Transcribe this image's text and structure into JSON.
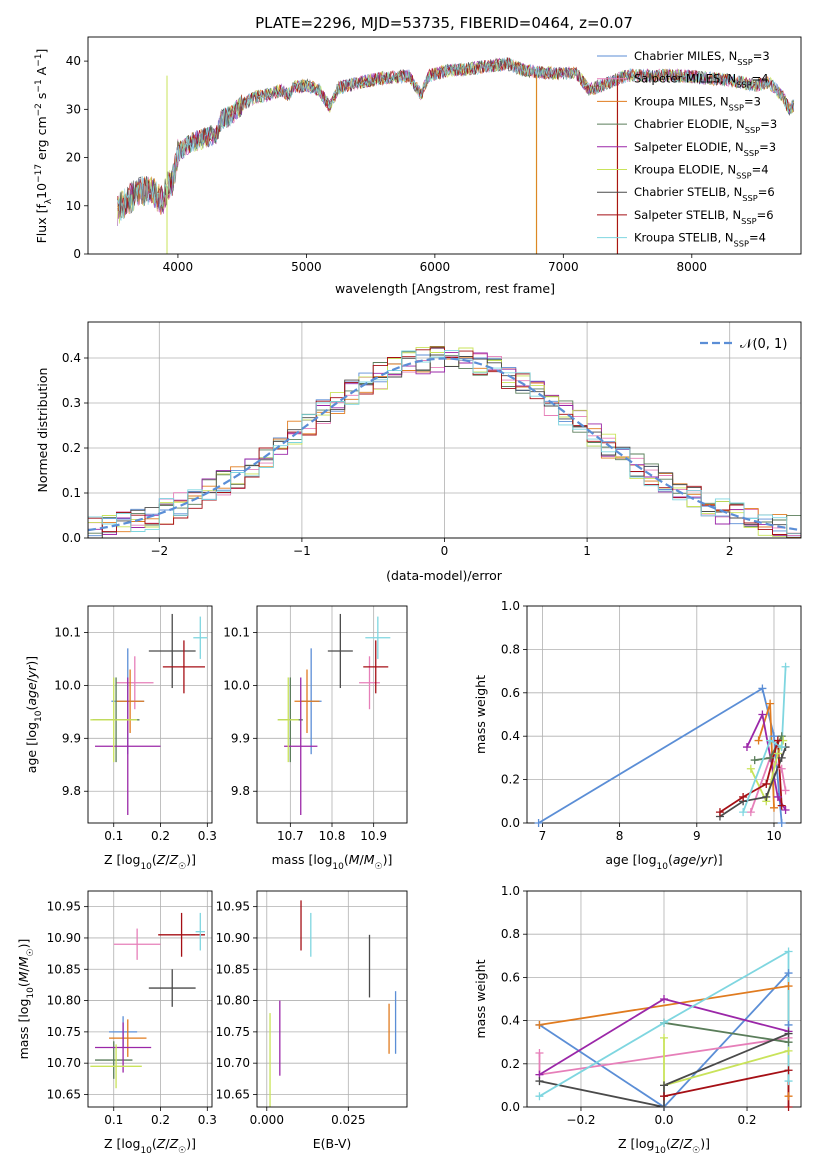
{
  "title": "PLATE=2296, MJD=53735, FIBERID=0464, z=0.07",
  "colors": {
    "Chabrier MILES": "#5b8ed6",
    "Salpeter MILES": "#e67fb9",
    "Kroupa MILES": "#e07b1f",
    "Chabrier ELODIE": "#5a7d5a",
    "Salpeter ELODIE": "#9b27a8",
    "Kroupa ELODIE": "#c9e35a",
    "Chabrier STELIB": "#4a4a4a",
    "Salpeter STELIB": "#a50f15",
    "Kroupa STELIB": "#7fd6e0",
    "gaussian": "#5b8ed6"
  },
  "chart_data": [
    {
      "type": "line",
      "id": "spectrum",
      "xlabel": "wavelength [Angstrom, rest frame]",
      "ylabel": "Flux [f_λ 10^-17 erg cm^-2 s^-1 A^-1]",
      "xlim": [
        3300,
        8850
      ],
      "ylim": [
        0,
        45
      ],
      "xticks": [
        "4000",
        "5000",
        "6000",
        "7000",
        "8000"
      ],
      "yticks": [
        "0",
        "10",
        "20",
        "30",
        "40"
      ],
      "grid": false,
      "legend_position": "upper-right",
      "spectrum_anchors": [
        [
          3530,
          9
        ],
        [
          3600,
          11
        ],
        [
          3700,
          13
        ],
        [
          3800,
          13
        ],
        [
          3880,
          11
        ],
        [
          3920,
          14
        ],
        [
          3960,
          15
        ],
        [
          4000,
          21
        ],
        [
          4100,
          23
        ],
        [
          4200,
          24
        ],
        [
          4300,
          25
        ],
        [
          4340,
          28
        ],
        [
          4400,
          28.5
        ],
        [
          4500,
          31
        ],
        [
          4600,
          32.5
        ],
        [
          4700,
          33
        ],
        [
          4800,
          34
        ],
        [
          4860,
          33
        ],
        [
          4900,
          34.5
        ],
        [
          5000,
          35
        ],
        [
          5100,
          34
        ],
        [
          5180,
          30.5
        ],
        [
          5250,
          34.5
        ],
        [
          5400,
          35.5
        ],
        [
          5600,
          36.5
        ],
        [
          5800,
          37
        ],
        [
          5895,
          33
        ],
        [
          5950,
          37
        ],
        [
          6100,
          38
        ],
        [
          6300,
          38.5
        ],
        [
          6563,
          39.5
        ],
        [
          6700,
          38
        ],
        [
          6900,
          37.5
        ],
        [
          7100,
          37.5
        ],
        [
          7200,
          34
        ],
        [
          7300,
          35
        ],
        [
          7500,
          37
        ],
        [
          7700,
          37
        ],
        [
          7900,
          37
        ],
        [
          8100,
          36.5
        ],
        [
          8300,
          36
        ],
        [
          8500,
          35
        ],
        [
          8600,
          35.5
        ],
        [
          8700,
          33
        ],
        [
          8760,
          30
        ],
        [
          8800,
          31
        ]
      ],
      "series": [
        {
          "name": "Chabrier MILES",
          "legend": "Chabrier MILES, N_SSP=3"
        },
        {
          "name": "Salpeter MILES",
          "legend": "Salpeter MILES, N_SSP=4"
        },
        {
          "name": "Kroupa MILES",
          "legend": "Kroupa MILES, N_SSP=3"
        },
        {
          "name": "Chabrier ELODIE",
          "legend": "Chabrier ELODIE, N_SSP=3"
        },
        {
          "name": "Salpeter ELODIE",
          "legend": "Salpeter ELODIE, N_SSP=3"
        },
        {
          "name": "Kroupa ELODIE",
          "legend": "Kroupa ELODIE, N_SSP=4"
        },
        {
          "name": "Chabrier STELIB",
          "legend": "Chabrier STELIB, N_SSP=6"
        },
        {
          "name": "Salpeter STELIB",
          "legend": "Salpeter STELIB, N_SSP=6"
        },
        {
          "name": "Kroupa STELIB",
          "legend": "Kroupa STELIB, N_SSP=4"
        }
      ]
    },
    {
      "type": "histogram",
      "id": "residuals",
      "xlabel": "(data-model)/error",
      "ylabel": "Normed distribution",
      "xlim": [
        -2.5,
        2.5
      ],
      "ylim": [
        0,
        0.48
      ],
      "xticks": [
        -2,
        -1,
        0,
        1,
        2
      ],
      "yticks": [
        0.0,
        0.1,
        0.2,
        0.3,
        0.4
      ],
      "bin_width": 0.1,
      "grid": true,
      "legend_position": "upper-right",
      "gaussian_legend": "𝒩(0, 1)"
    },
    {
      "type": "scatter",
      "id": "age-vs-Z",
      "xlabel": "Z [log10(Z/Z☉)]",
      "ylabel": "age [log10(age/yr)]",
      "xlim": [
        0.045,
        0.31
      ],
      "ylim": [
        9.74,
        10.15
      ],
      "xticks": [
        0.1,
        0.2,
        0.3
      ],
      "yticks": [
        9.8,
        9.9,
        10.0,
        10.1
      ],
      "grid": true,
      "points": [
        {
          "series": "Chabrier MILES",
          "x": 0.13,
          "y": 9.97,
          "xerr": 0.035,
          "yerr": 0.1
        },
        {
          "series": "Salpeter MILES",
          "x": 0.145,
          "y": 10.005,
          "xerr": 0.04,
          "yerr": 0.05
        },
        {
          "series": "Kroupa MILES",
          "x": 0.135,
          "y": 9.97,
          "xerr": 0.03,
          "yerr": 0.06
        },
        {
          "series": "Chabrier ELODIE",
          "x": 0.105,
          "y": 9.935,
          "xerr": 0.05,
          "yerr": 0.08
        },
        {
          "series": "Salpeter ELODIE",
          "x": 0.13,
          "y": 9.885,
          "xerr": 0.07,
          "yerr": 0.13
        },
        {
          "series": "Kroupa ELODIE",
          "x": 0.1,
          "y": 9.935,
          "xerr": 0.05,
          "yerr": 0.08
        },
        {
          "series": "Chabrier STELIB",
          "x": 0.225,
          "y": 10.065,
          "xerr": 0.05,
          "yerr": 0.07
        },
        {
          "series": "Salpeter STELIB",
          "x": 0.25,
          "y": 10.035,
          "xerr": 0.045,
          "yerr": 0.05
        },
        {
          "series": "Kroupa STELIB",
          "x": 0.285,
          "y": 10.09,
          "xerr": 0.015,
          "yerr": 0.04
        }
      ]
    },
    {
      "type": "scatter",
      "id": "age-vs-mass",
      "xlabel": "mass [log10(M/M☉)]",
      "ylabel": "",
      "xlim": [
        10.62,
        10.98
      ],
      "ylim": [
        9.74,
        10.15
      ],
      "xticks": [
        10.7,
        10.8,
        10.9
      ],
      "yticks": [
        9.8,
        9.9,
        10.0,
        10.1
      ],
      "grid": true,
      "points": [
        {
          "series": "Chabrier MILES",
          "x": 10.75,
          "y": 9.97,
          "xerr": 0.025,
          "yerr": 0.1
        },
        {
          "series": "Salpeter MILES",
          "x": 10.89,
          "y": 10.005,
          "xerr": 0.025,
          "yerr": 0.05
        },
        {
          "series": "Kroupa MILES",
          "x": 10.74,
          "y": 9.97,
          "xerr": 0.03,
          "yerr": 0.06
        },
        {
          "series": "Chabrier ELODIE",
          "x": 10.7,
          "y": 9.935,
          "xerr": 0.03,
          "yerr": 0.08
        },
        {
          "series": "Salpeter ELODIE",
          "x": 10.725,
          "y": 9.885,
          "xerr": 0.04,
          "yerr": 0.13
        },
        {
          "series": "Kroupa ELODIE",
          "x": 10.695,
          "y": 9.935,
          "xerr": 0.025,
          "yerr": 0.08
        },
        {
          "series": "Chabrier STELIB",
          "x": 10.82,
          "y": 10.065,
          "xerr": 0.03,
          "yerr": 0.07
        },
        {
          "series": "Salpeter STELIB",
          "x": 10.905,
          "y": 10.035,
          "xerr": 0.03,
          "yerr": 0.05
        },
        {
          "series": "Kroupa STELIB",
          "x": 10.91,
          "y": 10.09,
          "xerr": 0.03,
          "yerr": 0.04
        }
      ]
    },
    {
      "type": "line",
      "id": "mass-weight-vs-age",
      "xlabel": "age [log10(age/yr)]",
      "ylabel": "mass weight",
      "xlim": [
        6.8,
        10.35
      ],
      "ylim": [
        0,
        1
      ],
      "xticks": [
        7,
        8,
        9,
        10
      ],
      "yticks": [
        0.0,
        0.2,
        0.4,
        0.6,
        0.8,
        1.0
      ],
      "grid": true,
      "series": [
        {
          "name": "Chabrier MILES",
          "points": [
            [
              6.95,
              0.0
            ],
            [
              9.85,
              0.62
            ],
            [
              10.0,
              0.4
            ],
            [
              10.1,
              0.0
            ]
          ]
        },
        {
          "name": "Salpeter MILES",
          "points": [
            [
              9.7,
              0.05
            ],
            [
              9.95,
              0.3
            ],
            [
              10.1,
              0.25
            ],
            [
              10.15,
              0.15
            ]
          ]
        },
        {
          "name": "Kroupa MILES",
          "points": [
            [
              9.8,
              0.38
            ],
            [
              9.95,
              0.55
            ],
            [
              10.0,
              0.07
            ]
          ]
        },
        {
          "name": "Chabrier ELODIE",
          "points": [
            [
              9.75,
              0.29
            ],
            [
              9.95,
              0.3
            ],
            [
              10.1,
              0.4
            ]
          ]
        },
        {
          "name": "Salpeter ELODIE",
          "points": [
            [
              9.65,
              0.35
            ],
            [
              9.85,
              0.5
            ],
            [
              10.05,
              0.12
            ],
            [
              10.15,
              0.06
            ]
          ]
        },
        {
          "name": "Kroupa ELODIE",
          "points": [
            [
              9.7,
              0.25
            ],
            [
              9.9,
              0.1
            ],
            [
              10.05,
              0.32
            ],
            [
              10.12,
              0.38
            ]
          ]
        },
        {
          "name": "Chabrier STELIB",
          "points": [
            [
              9.3,
              0.03
            ],
            [
              9.6,
              0.1
            ],
            [
              9.9,
              0.12
            ],
            [
              10.1,
              0.3
            ],
            [
              10.15,
              0.35
            ]
          ]
        },
        {
          "name": "Salpeter STELIB",
          "points": [
            [
              9.3,
              0.05
            ],
            [
              9.6,
              0.12
            ],
            [
              9.9,
              0.18
            ],
            [
              10.05,
              0.38
            ],
            [
              10.1,
              0.08
            ]
          ]
        },
        {
          "name": "Kroupa STELIB",
          "points": [
            [
              9.6,
              0.05
            ],
            [
              9.95,
              0.38
            ],
            [
              10.1,
              0.35
            ],
            [
              10.15,
              0.72
            ]
          ]
        }
      ]
    },
    {
      "type": "scatter",
      "id": "mass-vs-Z",
      "xlabel": "Z [log10(Z/Z☉)]",
      "ylabel": "mass [log10(M/M☉)]",
      "xlim": [
        0.045,
        0.31
      ],
      "ylim": [
        10.63,
        10.975
      ],
      "xticks": [
        0.1,
        0.2,
        0.3
      ],
      "yticks": [
        10.65,
        10.7,
        10.75,
        10.8,
        10.85,
        10.9,
        10.95
      ],
      "grid": true,
      "points": [
        {
          "series": "Chabrier MILES",
          "x": 0.12,
          "y": 10.75,
          "xerr": 0.03,
          "yerr": 0.025
        },
        {
          "series": "Salpeter MILES",
          "x": 0.15,
          "y": 10.89,
          "xerr": 0.05,
          "yerr": 0.025
        },
        {
          "series": "Kroupa MILES",
          "x": 0.13,
          "y": 10.74,
          "xerr": 0.04,
          "yerr": 0.03
        },
        {
          "series": "Chabrier ELODIE",
          "x": 0.1,
          "y": 10.705,
          "xerr": 0.04,
          "yerr": 0.03
        },
        {
          "series": "Salpeter ELODIE",
          "x": 0.12,
          "y": 10.725,
          "xerr": 0.06,
          "yerr": 0.04
        },
        {
          "series": "Kroupa ELODIE",
          "x": 0.105,
          "y": 10.695,
          "xerr": 0.055,
          "yerr": 0.035
        },
        {
          "series": "Chabrier STELIB",
          "x": 0.225,
          "y": 10.82,
          "xerr": 0.05,
          "yerr": 0.03
        },
        {
          "series": "Salpeter STELIB",
          "x": 0.245,
          "y": 10.905,
          "xerr": 0.05,
          "yerr": 0.035
        },
        {
          "series": "Kroupa STELIB",
          "x": 0.285,
          "y": 10.91,
          "xerr": 0.01,
          "yerr": 0.03
        }
      ]
    },
    {
      "type": "scatter",
      "id": "mass-vs-ebv",
      "xlabel": "E(B-V)",
      "ylabel": "",
      "xlim": [
        -0.003,
        0.043
      ],
      "ylim": [
        10.63,
        10.975
      ],
      "xticks": [
        "0.000",
        "0.025"
      ],
      "xtick_values": [
        0.0,
        0.025
      ],
      "yticks": [
        10.65,
        10.7,
        10.75,
        10.8,
        10.85,
        10.9,
        10.95
      ],
      "grid": true,
      "points": [
        {
          "series": "Chabrier MILES",
          "x": 0.0395,
          "y": 10.765,
          "yerr": 0.05
        },
        {
          "series": "Kroupa MILES",
          "x": 0.0375,
          "y": 10.755,
          "yerr": 0.04
        },
        {
          "series": "Salpeter ELODIE",
          "x": 0.004,
          "y": 10.74,
          "yerr": 0.06
        },
        {
          "series": "Kroupa ELODIE",
          "x": 0.001,
          "y": 10.7,
          "yerr": 0.08
        },
        {
          "series": "Chabrier STELIB",
          "x": 0.0315,
          "y": 10.855,
          "yerr": 0.05
        },
        {
          "series": "Salpeter STELIB",
          "x": 0.0105,
          "y": 10.92,
          "yerr": 0.04
        },
        {
          "series": "Kroupa STELIB",
          "x": 0.0135,
          "y": 10.905,
          "yerr": 0.035
        }
      ]
    },
    {
      "type": "line",
      "id": "mass-weight-vs-Z",
      "xlabel": "Z [log10(Z/Z☉)]",
      "ylabel": "mass weight",
      "xlim": [
        -0.33,
        0.33
      ],
      "ylim": [
        0,
        1
      ],
      "xticks": [
        "-0.2",
        "0.0",
        "0.2"
      ],
      "xtick_values": [
        -0.2,
        0.0,
        0.2
      ],
      "yticks": [
        0.0,
        0.2,
        0.4,
        0.6,
        0.8,
        1.0
      ],
      "grid": true,
      "series": [
        {
          "name": "Chabrier MILES",
          "points": [
            [
              -0.3,
              0.38
            ],
            [
              0.0,
              0.0
            ],
            [
              0.3,
              0.62
            ],
            [
              0.3,
              0.38
            ]
          ]
        },
        {
          "name": "Salpeter MILES",
          "points": [
            [
              -0.3,
              0.25
            ],
            [
              -0.3,
              0.15
            ],
            [
              0.3,
              0.32
            ]
          ]
        },
        {
          "name": "Kroupa MILES",
          "points": [
            [
              -0.3,
              0.38
            ],
            [
              0.3,
              0.56
            ],
            [
              0.3,
              0.05
            ]
          ]
        },
        {
          "name": "Chabrier ELODIE",
          "points": [
            [
              0.0,
              0.39
            ],
            [
              0.3,
              0.3
            ]
          ]
        },
        {
          "name": "Salpeter ELODIE",
          "points": [
            [
              -0.3,
              0.15
            ],
            [
              0.0,
              0.5
            ],
            [
              0.3,
              0.35
            ]
          ]
        },
        {
          "name": "Kroupa ELODIE",
          "points": [
            [
              0.0,
              0.32
            ],
            [
              0.0,
              0.1
            ],
            [
              0.3,
              0.26
            ]
          ]
        },
        {
          "name": "Chabrier STELIB",
          "points": [
            [
              -0.3,
              0.12
            ],
            [
              0.0,
              0.0
            ],
            [
              0.0,
              0.1
            ],
            [
              0.3,
              0.34
            ]
          ]
        },
        {
          "name": "Salpeter STELIB",
          "points": [
            [
              0.0,
              0.05
            ],
            [
              0.3,
              0.17
            ],
            [
              0.3,
              0.0
            ]
          ]
        },
        {
          "name": "Kroupa STELIB",
          "points": [
            [
              -0.3,
              0.05
            ],
            [
              0.0,
              0.39
            ],
            [
              0.3,
              0.72
            ],
            [
              0.3,
              0.12
            ]
          ]
        }
      ]
    }
  ]
}
